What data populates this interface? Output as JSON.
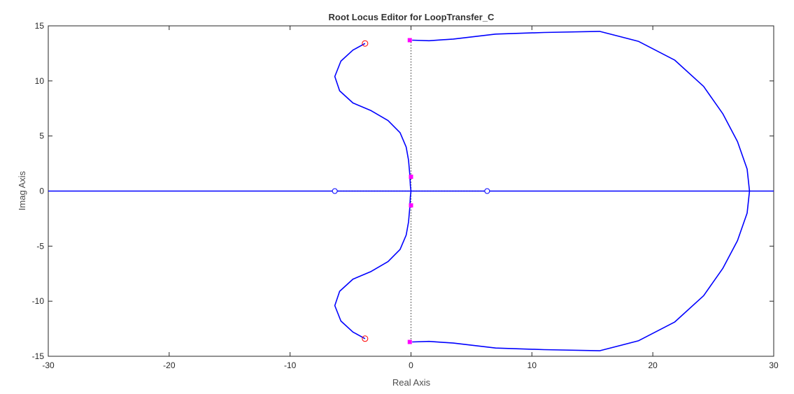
{
  "chart_data": {
    "type": "line",
    "title": "Root Locus Editor for LoopTransfer_C",
    "xlabel": "Real Axis",
    "ylabel": "Imag Axis",
    "xlim": [
      -30,
      30
    ],
    "ylim": [
      -15,
      15
    ],
    "xticks": [
      -30,
      -20,
      -10,
      0,
      10,
      20,
      30
    ],
    "yticks": [
      -15,
      -10,
      -5,
      0,
      5,
      10,
      15
    ],
    "grid": false,
    "colors": {
      "locus": "#0000ff",
      "poles": "#ff0000",
      "zeros": "#0000ff",
      "closed_loop_poles": "#ff00ff",
      "axes": "#262626",
      "reference_lines": "#555555"
    },
    "series": [
      {
        "points": [
          [
            -30,
            0
          ],
          [
            30,
            0
          ]
        ]
      },
      {
        "points": [
          [
            -3.8,
            13.4
          ],
          [
            -4.8,
            12.8
          ],
          [
            -5.8,
            11.8
          ],
          [
            -6.3,
            10.4
          ],
          [
            -5.9,
            9.1
          ],
          [
            -4.8,
            8.0
          ],
          [
            -3.3,
            7.3
          ],
          [
            -1.9,
            6.4
          ],
          [
            -0.9,
            5.3
          ],
          [
            -0.4,
            4.0
          ],
          [
            -0.2,
            2.8
          ],
          [
            -0.1,
            1.5
          ],
          [
            -0.05,
            0.5
          ],
          [
            0,
            0
          ]
        ]
      },
      {
        "points": [
          [
            -3.8,
            -13.4
          ],
          [
            -4.8,
            -12.8
          ],
          [
            -5.8,
            -11.8
          ],
          [
            -6.3,
            -10.4
          ],
          [
            -5.9,
            -9.1
          ],
          [
            -4.8,
            -8.0
          ],
          [
            -3.3,
            -7.3
          ],
          [
            -1.9,
            -6.4
          ],
          [
            -0.9,
            -5.3
          ],
          [
            -0.4,
            -4.0
          ],
          [
            -0.2,
            -2.8
          ],
          [
            -0.1,
            -1.5
          ],
          [
            -0.05,
            -0.5
          ],
          [
            0,
            0
          ]
        ]
      },
      {
        "points": [
          [
            0.1,
            13.7
          ],
          [
            1.5,
            13.65
          ],
          [
            3.5,
            13.8
          ],
          [
            7.0,
            14.25
          ],
          [
            11.0,
            14.4
          ],
          [
            15.6,
            14.5
          ],
          [
            18.8,
            13.6
          ],
          [
            21.8,
            11.9
          ],
          [
            24.2,
            9.5
          ],
          [
            25.8,
            7.0
          ],
          [
            27.0,
            4.5
          ],
          [
            27.8,
            2.0
          ],
          [
            28.0,
            0.0
          ],
          [
            27.8,
            -2.0
          ],
          [
            27.0,
            -4.5
          ],
          [
            25.8,
            -7.0
          ],
          [
            24.2,
            -9.5
          ],
          [
            21.8,
            -11.9
          ],
          [
            18.8,
            -13.6
          ],
          [
            15.6,
            -14.5
          ],
          [
            11.0,
            -14.4
          ],
          [
            7.0,
            -14.25
          ],
          [
            3.5,
            -13.8
          ],
          [
            1.5,
            -13.65
          ],
          [
            0.1,
            -13.7
          ]
        ]
      }
    ],
    "reference_lines": [
      {
        "orientation": "vertical",
        "points": [
          [
            0,
            -13.7
          ],
          [
            0,
            13.7
          ]
        ]
      },
      {
        "orientation": "horizontal",
        "points": [
          [
            -6.3,
            0
          ],
          [
            6.3,
            0
          ]
        ]
      }
    ],
    "open_loop_poles": [
      [
        -3.8,
        13.4
      ],
      [
        -3.8,
        -13.4
      ]
    ],
    "open_loop_zeros": [
      [
        -6.3,
        0
      ],
      [
        6.3,
        0
      ]
    ],
    "closed_loop_poles": [
      [
        -0.1,
        13.7
      ],
      [
        -0.1,
        -13.7
      ],
      [
        0,
        1.3
      ],
      [
        0,
        -1.3
      ]
    ]
  }
}
